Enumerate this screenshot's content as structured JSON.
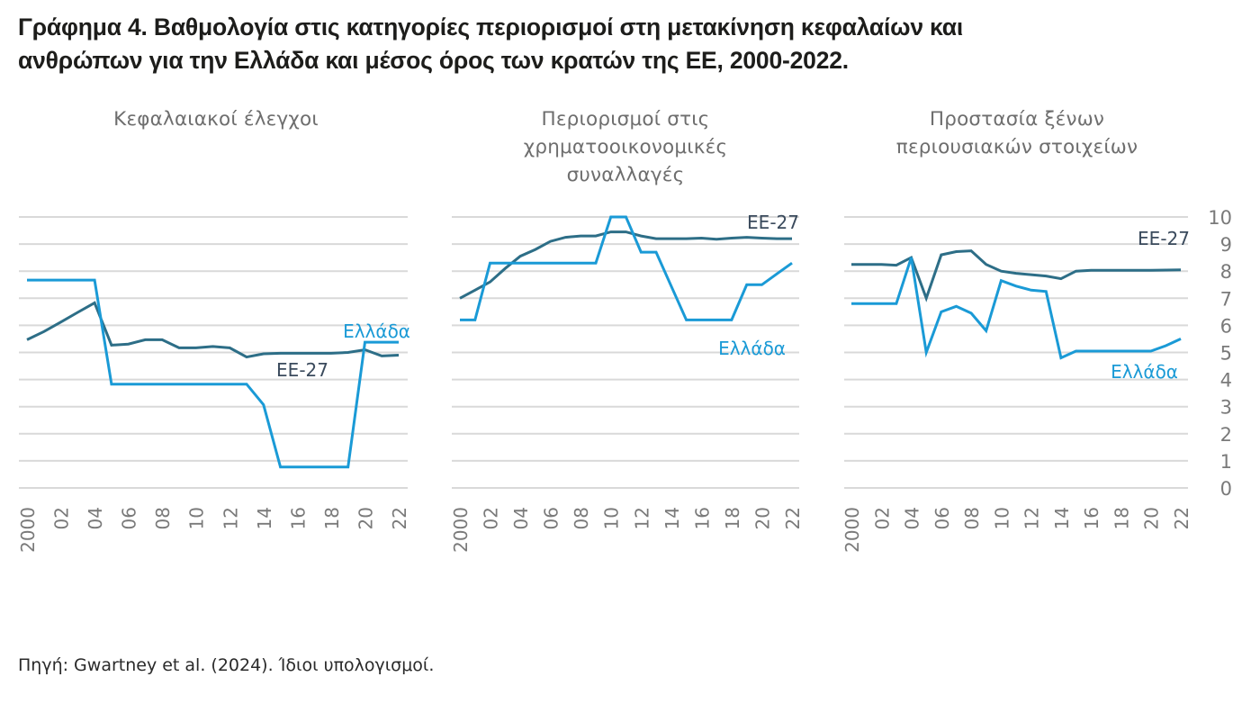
{
  "title_lines": [
    "Γράφημα 4. Βαθμολογία στις κατηγορίες περιορισμοί στη μετακίνηση κεφαλαίων και",
    "ανθρώπων για την Ελλάδα και μέσος όρος των κρατών της ΕΕ, 2000-2022."
  ],
  "source": "Πηγή: Gwartney et al. (2024). Ίδιοι υπολογισμοί.",
  "colors": {
    "greece": "#1a9ad6",
    "eu27": "#2d6e87",
    "grid": "#d9d9d9",
    "tick": "#7a7a7a",
    "eu_label": "#3a4a5c"
  },
  "chart_data": [
    {
      "type": "line",
      "title_lines": [
        "Κεφαλαιακοί έλεγχοι"
      ],
      "x": [
        2000,
        2001,
        2002,
        2003,
        2004,
        2005,
        2006,
        2007,
        2008,
        2009,
        2010,
        2011,
        2012,
        2013,
        2014,
        2015,
        2016,
        2017,
        2018,
        2019,
        2020,
        2021,
        2022
      ],
      "x_tick_labels": [
        "2000",
        "02",
        "04",
        "06",
        "08",
        "10",
        "12",
        "14",
        "16",
        "18",
        "20",
        "22"
      ],
      "ylim": [
        0,
        10
      ],
      "grid": true,
      "series": [
        {
          "name": "Ελλάδα",
          "values": [
            7.67,
            7.67,
            7.67,
            7.67,
            7.67,
            3.83,
            3.83,
            3.83,
            3.83,
            3.83,
            3.83,
            3.83,
            3.83,
            3.83,
            3.07,
            0.77,
            0.77,
            0.77,
            0.77,
            0.77,
            5.38,
            5.38,
            5.38
          ]
        },
        {
          "name": "ΕΕ-27",
          "values": [
            5.47,
            5.77,
            6.12,
            6.48,
            6.83,
            5.27,
            5.31,
            5.47,
            5.47,
            5.17,
            5.17,
            5.22,
            5.17,
            4.83,
            4.95,
            4.97,
            4.97,
            4.97,
            4.97,
            5.0,
            5.1,
            4.87,
            4.9
          ]
        }
      ]
    },
    {
      "type": "line",
      "title_lines": [
        "Περιορισμοί στις",
        "χρηματοοικονομικές",
        "συναλλαγές"
      ],
      "x": [
        2000,
        2001,
        2002,
        2003,
        2004,
        2005,
        2006,
        2007,
        2008,
        2009,
        2010,
        2011,
        2012,
        2013,
        2014,
        2015,
        2016,
        2017,
        2018,
        2019,
        2020,
        2021,
        2022
      ],
      "x_tick_labels": [
        "2000",
        "02",
        "04",
        "06",
        "08",
        "10",
        "12",
        "14",
        "16",
        "18",
        "20",
        "22"
      ],
      "ylim": [
        0,
        10
      ],
      "grid": true,
      "series": [
        {
          "name": "Ελλάδα",
          "values": [
            6.2,
            6.2,
            8.3,
            8.3,
            8.3,
            8.3,
            8.3,
            8.3,
            8.3,
            8.3,
            10,
            10,
            8.7,
            8.7,
            7.45,
            6.2,
            6.2,
            6.2,
            6.2,
            7.5,
            7.5,
            7.9,
            8.3
          ]
        },
        {
          "name": "ΕΕ-27",
          "values": [
            7.0,
            7.3,
            7.6,
            8.1,
            8.55,
            8.8,
            9.1,
            9.25,
            9.3,
            9.3,
            9.45,
            9.45,
            9.3,
            9.2,
            9.2,
            9.2,
            9.22,
            9.18,
            9.22,
            9.25,
            9.22,
            9.2,
            9.2
          ]
        }
      ]
    },
    {
      "type": "line",
      "title_lines": [
        "Προστασία ξένων",
        "περιουσιακών στοιχείων"
      ],
      "x": [
        2000,
        2001,
        2002,
        2003,
        2004,
        2005,
        2006,
        2007,
        2008,
        2009,
        2010,
        2011,
        2012,
        2013,
        2014,
        2015,
        2016,
        2017,
        2018,
        2019,
        2020,
        2021,
        2022
      ],
      "x_tick_labels": [
        "2000",
        "02",
        "04",
        "06",
        "08",
        "10",
        "12",
        "14",
        "16",
        "18",
        "20",
        "22"
      ],
      "ylim": [
        0,
        10
      ],
      "y_tick_labels": [
        "0",
        "1",
        "2",
        "3",
        "4",
        "5",
        "6",
        "7",
        "8",
        "9",
        "10"
      ],
      "grid": true,
      "series": [
        {
          "name": "Ελλάδα",
          "values": [
            6.8,
            6.8,
            6.8,
            6.8,
            8.5,
            5.0,
            6.5,
            6.7,
            6.45,
            5.8,
            7.65,
            7.45,
            7.3,
            7.25,
            4.8,
            5.05,
            5.05,
            5.05,
            5.05,
            5.05,
            5.05,
            5.25,
            5.5
          ]
        },
        {
          "name": "ΕΕ-27",
          "values": [
            8.25,
            8.25,
            8.25,
            8.22,
            8.5,
            7.0,
            8.6,
            8.72,
            8.75,
            8.25,
            8.0,
            7.92,
            7.87,
            7.82,
            7.72,
            8.0,
            8.03,
            8.03,
            8.03,
            8.03,
            8.03,
            8.04,
            8.05
          ]
        }
      ]
    }
  ]
}
